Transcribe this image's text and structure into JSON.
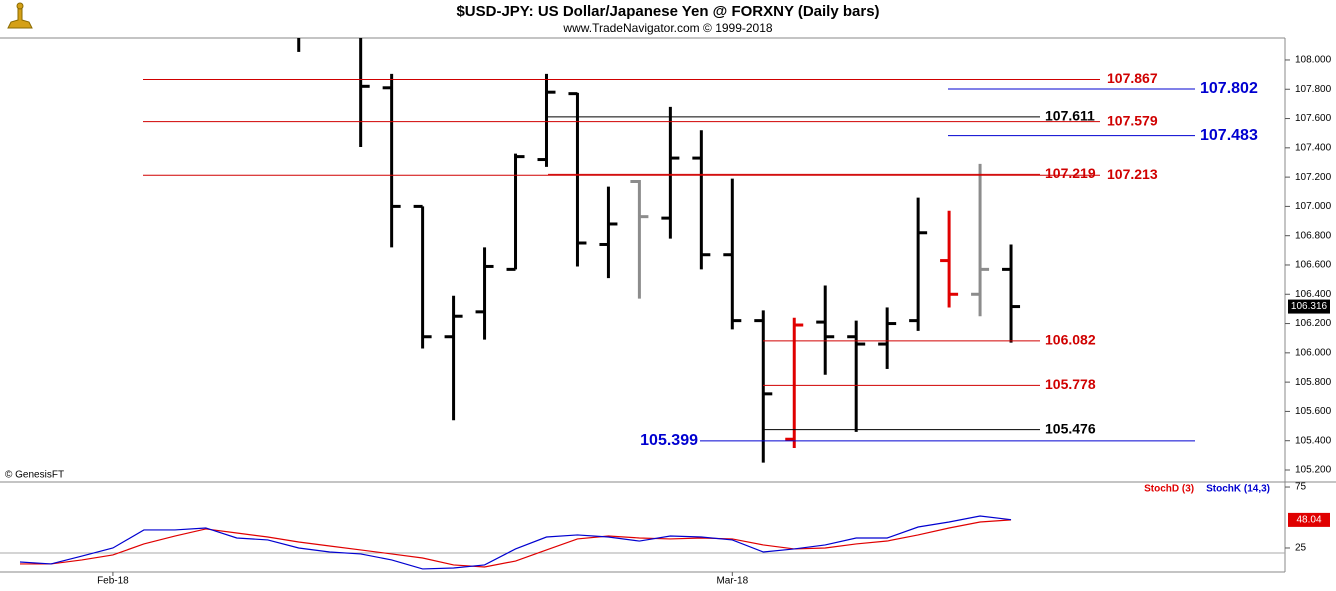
{
  "chart_data": [
    {
      "type": "ohlc",
      "title": "$USD-JPY:  US Dollar/Japanese Yen @ FORXNY  (Daily bars)",
      "subtitle": "www.TradeNavigator.com © 1999-2018",
      "annotation": "© GenesisFT",
      "open": [
        null,
        null,
        null,
        null,
        null,
        null,
        null,
        null,
        null,
        null,
        null,
        null,
        107.81,
        107.0,
        106.11,
        106.28,
        106.57,
        107.32,
        107.77,
        106.74,
        107.17,
        106.92,
        107.33,
        106.67,
        106.22,
        105.41,
        106.21,
        106.11,
        106.06,
        106.22,
        106.63,
        106.4,
        106.57
      ],
      "high": [
        null,
        null,
        null,
        null,
        null,
        null,
        null,
        null,
        null,
        108.3,
        null,
        108.3,
        107.905,
        107.0,
        106.39,
        106.72,
        107.36,
        107.905,
        107.775,
        107.135,
        107.18,
        107.68,
        107.52,
        107.19,
        106.29,
        106.24,
        106.46,
        106.22,
        106.31,
        107.06,
        106.97,
        107.29,
        106.74
      ],
      "low": [
        null,
        null,
        null,
        null,
        null,
        null,
        null,
        null,
        null,
        108.055,
        null,
        107.406,
        106.72,
        106.03,
        105.54,
        106.09,
        106.57,
        107.27,
        106.59,
        106.51,
        106.37,
        106.78,
        106.57,
        106.16,
        105.25,
        105.35,
        105.85,
        105.46,
        105.89,
        106.15,
        106.31,
        106.25,
        106.07
      ],
      "close": [
        null,
        null,
        null,
        null,
        null,
        null,
        null,
        null,
        null,
        null,
        null,
        107.82,
        107.0,
        106.11,
        106.25,
        106.59,
        107.34,
        107.78,
        106.75,
        106.88,
        106.93,
        107.33,
        106.67,
        106.22,
        105.72,
        106.19,
        106.11,
        106.06,
        106.2,
        106.82,
        106.4,
        106.57,
        106.316
      ],
      "colors": [
        null,
        null,
        null,
        null,
        null,
        null,
        null,
        null,
        null,
        "#000000",
        null,
        "#000000",
        "#000000",
        "#000000",
        "#000000",
        "#000000",
        "#000000",
        "#000000",
        "#000000",
        "#000000",
        "#8c8c8c",
        "#000000",
        "#000000",
        "#000000",
        "#000000",
        "#e00000",
        "#000000",
        "#000000",
        "#000000",
        "#000000",
        "#e00000",
        "#8c8c8c",
        "#000000"
      ],
      "levels": [
        {
          "value": 107.867,
          "color": "#d00000"
        },
        {
          "value": 107.802,
          "color": "#0000d0"
        },
        {
          "value": 107.611,
          "color": "#000000"
        },
        {
          "value": 107.579,
          "color": "#d00000"
        },
        {
          "value": 107.483,
          "color": "#0000d0"
        },
        {
          "value": 107.219,
          "color": "#d00000"
        },
        {
          "value": 107.213,
          "color": "#d00000"
        },
        {
          "value": 106.082,
          "color": "#d00000"
        },
        {
          "value": 105.778,
          "color": "#d00000"
        },
        {
          "value": 105.476,
          "color": "#000000"
        },
        {
          "value": 105.399,
          "color": "#0000d0"
        }
      ],
      "ylim": [
        105.118,
        108.15
      ],
      "yticks": [
        {
          "value": 105.2,
          "label": "105.200"
        },
        {
          "value": 105.4,
          "label": "105.400"
        },
        {
          "value": 105.6,
          "label": "105.600"
        },
        {
          "value": 105.8,
          "label": "105.800"
        },
        {
          "value": 106.0,
          "label": "106.000"
        },
        {
          "value": 106.2,
          "label": "106.200"
        },
        {
          "value": 106.4,
          "label": "106.400"
        },
        {
          "value": 106.6,
          "label": "106.600"
        },
        {
          "value": 106.8,
          "label": "106.800"
        },
        {
          "value": 107.0,
          "label": "107.000"
        },
        {
          "value": 107.2,
          "label": "107.200"
        },
        {
          "value": 107.4,
          "label": "107.400"
        },
        {
          "value": 107.6,
          "label": "107.600"
        },
        {
          "value": 107.8,
          "label": "107.800"
        },
        {
          "value": 108.0,
          "label": "108.000"
        }
      ]
    },
    {
      "type": "line",
      "categories": [
        null,
        null,
        null,
        "Feb-18",
        null,
        null,
        null,
        null,
        null,
        null,
        null,
        null,
        null,
        null,
        null,
        null,
        null,
        null,
        null,
        null,
        null,
        null,
        null,
        "Mar-18",
        null,
        null,
        null,
        null,
        null,
        null,
        null,
        null,
        null
      ],
      "series": [
        {
          "name": "StochD (3)",
          "color": "#e00000",
          "values": [
            11.9,
            11.9,
            15.2,
            19.3,
            28.3,
            34.8,
            40.6,
            37.3,
            34.0,
            29.9,
            26.6,
            23.4,
            20.1,
            16.8,
            11.1,
            9.4,
            14.3,
            23.4,
            32.4,
            34.8,
            33.2,
            32.4,
            33.2,
            32.4,
            27.5,
            24.2,
            25,
            28.3,
            30.7,
            35.7,
            41.4,
            46.3,
            48.04
          ]
        },
        {
          "name": "StochK (14,3)",
          "color": "#0000d0",
          "values": [
            13.5,
            11.9,
            18.4,
            25,
            39.8,
            39.8,
            41.4,
            33.2,
            31.6,
            25,
            21.7,
            20.1,
            15.2,
            7.8,
            8.6,
            11.1,
            24.2,
            34.0,
            35.7,
            34.0,
            30.7,
            34.8,
            34.0,
            31.6,
            21.7,
            24.2,
            27.5,
            33.2,
            33.2,
            42.2,
            46.3,
            51.2,
            48.2
          ]
        }
      ],
      "ylim": [
        5.3,
        78.3
      ],
      "yticks": [
        25,
        75
      ]
    }
  ]
}
